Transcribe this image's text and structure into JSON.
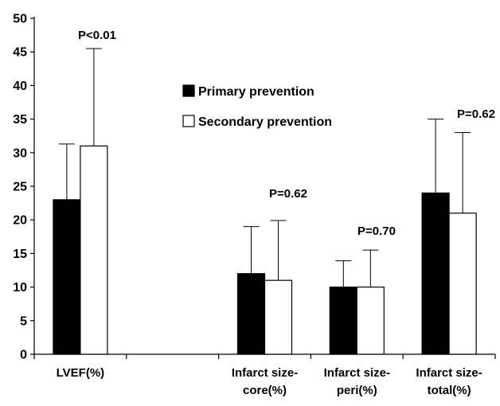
{
  "chart_data": {
    "type": "bar",
    "categories": [
      [
        "LVEF(%)"
      ],
      [],
      [
        "Infarct size-",
        "core(%)"
      ],
      [
        "Infarct size-",
        "peri(%)"
      ],
      [
        "Infarct size-",
        "total(%)"
      ]
    ],
    "series": [
      {
        "name": "Primary prevention",
        "color": "#000000",
        "values": [
          23,
          null,
          12,
          10,
          24
        ],
        "error_upper": [
          31.3,
          null,
          19,
          13.9,
          35
        ]
      },
      {
        "name": "Secondary prevention",
        "color": "#ffffff",
        "values": [
          31,
          null,
          11,
          10,
          21
        ],
        "error_upper": [
          45.5,
          null,
          19.9,
          15.5,
          33
        ]
      }
    ],
    "p_values": [
      "P<0.01",
      "",
      "P=0.62",
      "P=0.70",
      "P=0.62"
    ],
    "yticks": [
      "0",
      "5",
      "10",
      "15",
      "20",
      "25",
      "30",
      "35",
      "40",
      "45",
      "50"
    ],
    "ylim": [
      0,
      50
    ],
    "grid": false,
    "legend_position": "top-center"
  }
}
